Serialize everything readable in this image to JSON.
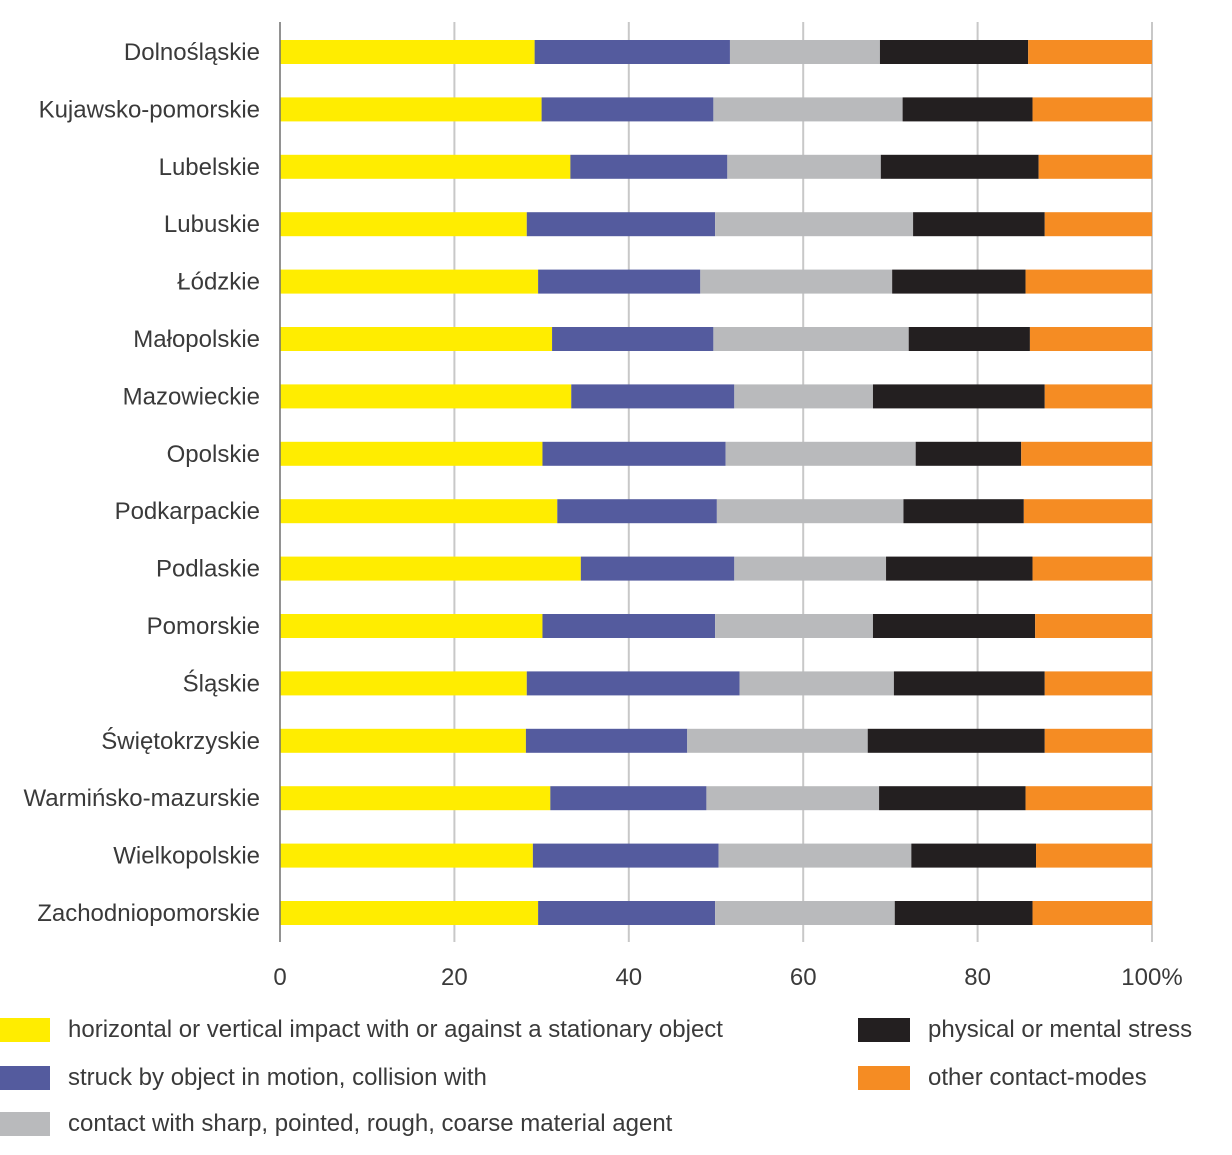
{
  "chart_data": {
    "type": "bar",
    "orientation": "horizontal",
    "stacked": true,
    "categories": [
      "Dolnośląskie",
      "Kujawsko-pomorskie",
      "Lubelskie",
      "Lubuskie",
      "Łódzkie",
      "Małopolskie",
      "Mazowieckie",
      "Opolskie",
      "Podkarpackie",
      "Podlaskie",
      "Pomorskie",
      "Śląskie",
      "Świętokrzyskie",
      "Warmińsko-mazurskie",
      "Wielkopolskie",
      "Zachodniopomorskie"
    ],
    "series": [
      {
        "name": "horizontal or vertical impact with or against a stationary object",
        "color": "#ffed00",
        "values": [
          29.2,
          30.0,
          33.3,
          28.3,
          29.6,
          31.2,
          33.4,
          30.1,
          31.8,
          34.5,
          30.1,
          28.3,
          28.2,
          31.0,
          29.0,
          29.6
        ]
      },
      {
        "name": "struck by object in motion, collision with",
        "color": "#545b9e",
        "values": [
          22.4,
          19.7,
          18.0,
          21.6,
          18.6,
          18.5,
          18.7,
          21.0,
          18.3,
          17.6,
          19.8,
          24.4,
          18.5,
          17.9,
          21.3,
          20.3
        ]
      },
      {
        "name": "contact with sharp, pointed, rough, coarse material agent",
        "color": "#b9babc",
        "values": [
          17.2,
          21.7,
          17.6,
          22.7,
          22.0,
          22.4,
          15.9,
          21.8,
          21.4,
          17.4,
          18.1,
          17.7,
          20.7,
          19.8,
          22.1,
          20.6
        ]
      },
      {
        "name": "physical or mental stress",
        "color": "#231f20",
        "values": [
          17.0,
          14.9,
          18.1,
          15.1,
          15.3,
          13.9,
          19.7,
          12.1,
          13.8,
          16.8,
          18.6,
          17.3,
          20.3,
          16.8,
          14.3,
          15.8
        ]
      },
      {
        "name": "other contact-modes",
        "color": "#f58c23",
        "values": [
          14.2,
          13.7,
          13.0,
          12.3,
          14.5,
          14.0,
          12.3,
          15.0,
          14.7,
          13.7,
          13.4,
          12.3,
          12.3,
          14.5,
          13.3,
          13.7
        ]
      }
    ],
    "xlim": [
      0,
      100
    ],
    "xticks": [
      "0",
      "20",
      "40",
      "60",
      "80",
      "100%"
    ],
    "xtick_values": [
      0,
      20,
      40,
      60,
      80,
      100
    ],
    "grid": "vertical",
    "legend_position": "bottom"
  }
}
